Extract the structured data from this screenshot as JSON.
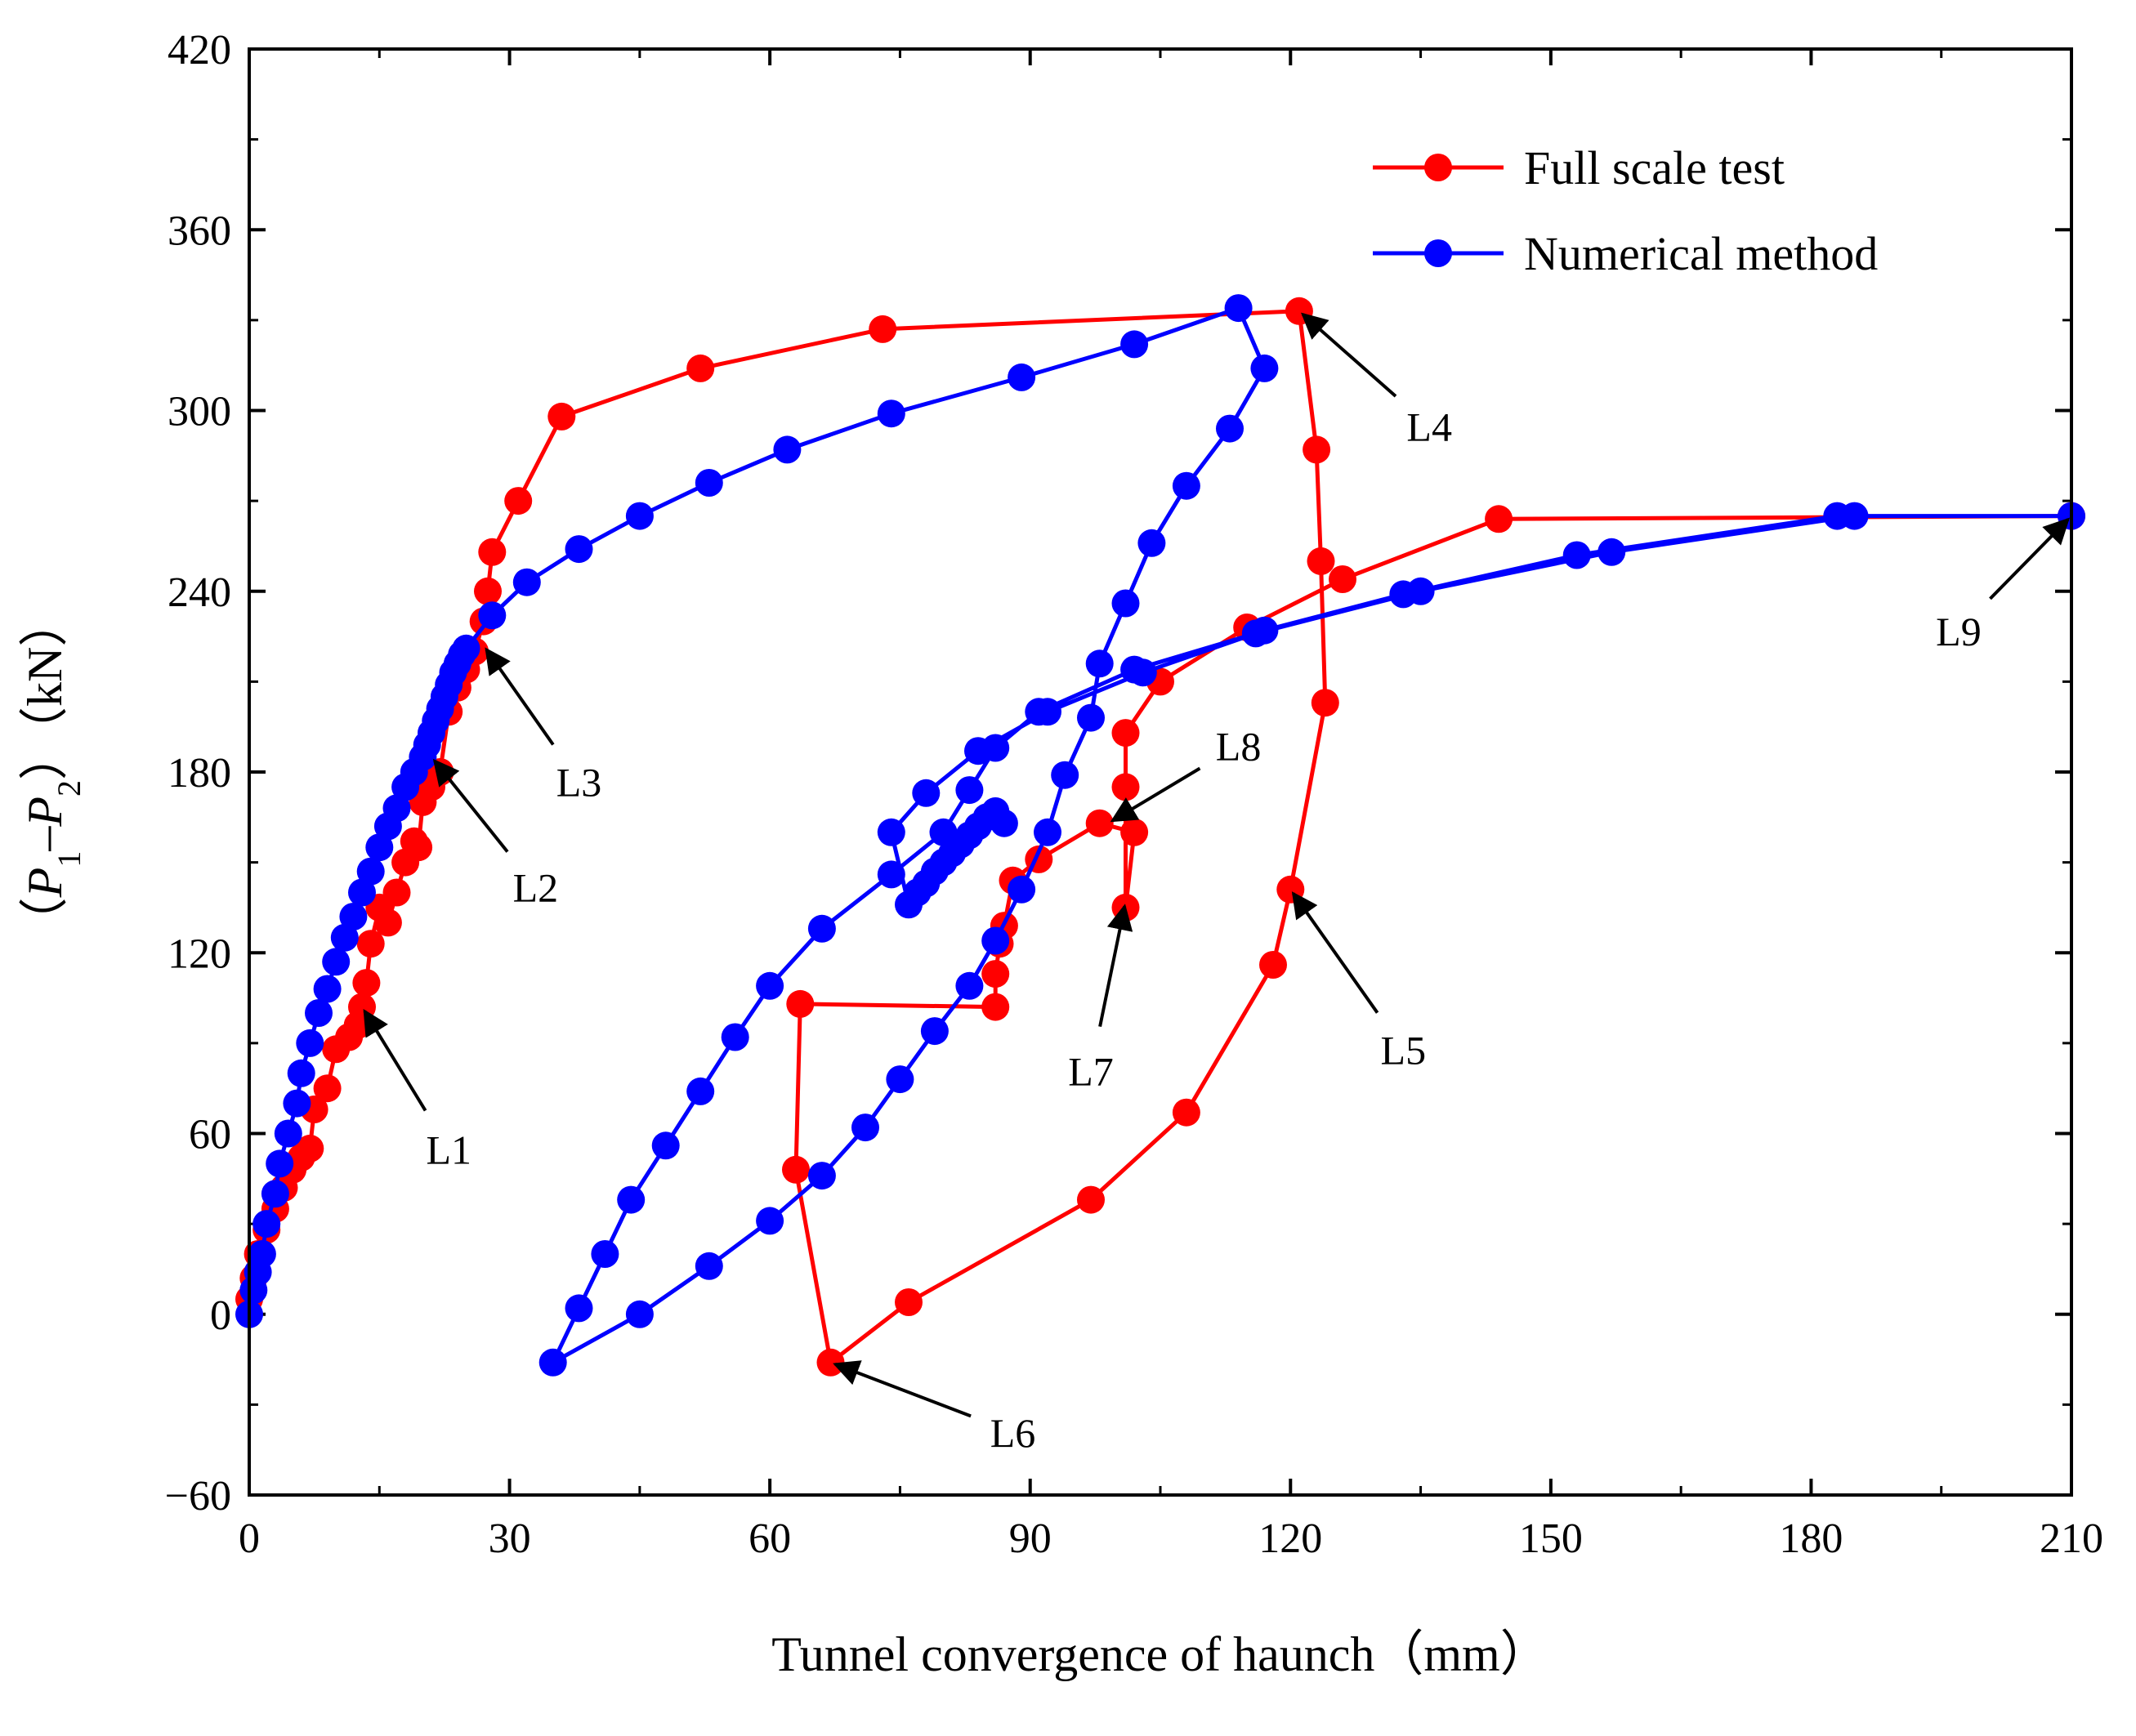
{
  "chart_data": {
    "type": "line",
    "xlabel": "Tunnel convergence of haunch（mm）",
    "ylabel_parts": [
      "（",
      "P",
      "1",
      "–",
      "P",
      "2",
      "）（kN）"
    ],
    "xlim": [
      0,
      210
    ],
    "ylim": [
      -60,
      420
    ],
    "xticks": [
      0,
      30,
      60,
      90,
      120,
      150,
      180,
      210
    ],
    "yticks": [
      -60,
      0,
      60,
      120,
      180,
      240,
      300,
      360,
      420
    ],
    "legend_position": "top-right",
    "series": [
      {
        "name": "Full scale test",
        "color": "#ff0000",
        "points": [
          [
            0,
            5
          ],
          [
            0.5,
            12
          ],
          [
            1,
            20
          ],
          [
            2,
            28
          ],
          [
            3,
            35
          ],
          [
            4,
            42
          ],
          [
            5,
            48
          ],
          [
            6,
            52
          ],
          [
            7,
            55
          ],
          [
            7.5,
            68
          ],
          [
            9,
            75
          ],
          [
            10,
            88
          ],
          [
            11.5,
            92
          ],
          [
            12.5,
            96
          ],
          [
            13,
            102
          ],
          [
            13.5,
            110
          ],
          [
            14,
            123
          ],
          [
            15,
            135
          ],
          [
            16,
            130
          ],
          [
            17,
            140
          ],
          [
            18,
            150
          ],
          [
            19,
            157
          ],
          [
            19.5,
            155
          ],
          [
            20,
            170
          ],
          [
            21,
            175
          ],
          [
            22,
            180
          ],
          [
            23,
            200
          ],
          [
            24,
            208
          ],
          [
            25,
            214
          ],
          [
            26,
            220
          ],
          [
            27,
            230
          ],
          [
            27.5,
            240
          ],
          [
            28,
            253
          ],
          [
            31,
            270
          ],
          [
            36,
            298
          ],
          [
            52,
            314
          ],
          [
            73,
            327
          ],
          [
            121,
            333
          ],
          [
            123,
            287
          ],
          [
            123.5,
            250
          ],
          [
            124,
            203
          ],
          [
            120,
            141
          ],
          [
            118,
            116
          ],
          [
            108,
            67
          ],
          [
            97,
            38
          ],
          [
            76,
            4
          ],
          [
            67,
            -16
          ],
          [
            63,
            48
          ],
          [
            63.5,
            103
          ],
          [
            86,
            102
          ],
          [
            86,
            113
          ],
          [
            86.5,
            123
          ],
          [
            87,
            129
          ],
          [
            88,
            144
          ],
          [
            91,
            151
          ],
          [
            98,
            163
          ],
          [
            102,
            160
          ],
          [
            101,
            135
          ],
          [
            101,
            175
          ],
          [
            101,
            193
          ],
          [
            105,
            210
          ],
          [
            115,
            228
          ],
          [
            126,
            244
          ],
          [
            144,
            264
          ],
          [
            210,
            265
          ]
        ]
      },
      {
        "name": "Numerical method",
        "color": "#0000ff",
        "points": [
          [
            0,
            0
          ],
          [
            0.5,
            8
          ],
          [
            1,
            14
          ],
          [
            1.5,
            20
          ],
          [
            2,
            30
          ],
          [
            3,
            40
          ],
          [
            3.5,
            50
          ],
          [
            4.5,
            60
          ],
          [
            5.5,
            70
          ],
          [
            6,
            80
          ],
          [
            7,
            90
          ],
          [
            8,
            100
          ],
          [
            9,
            108
          ],
          [
            10,
            117
          ],
          [
            11,
            125
          ],
          [
            12,
            132
          ],
          [
            13,
            140
          ],
          [
            14,
            147
          ],
          [
            15,
            155
          ],
          [
            16,
            162
          ],
          [
            17,
            168
          ],
          [
            18,
            175
          ],
          [
            19,
            180
          ],
          [
            20,
            185
          ],
          [
            20.5,
            189
          ],
          [
            21,
            193
          ],
          [
            21.5,
            197
          ],
          [
            22,
            201
          ],
          [
            22.5,
            205
          ],
          [
            23,
            209
          ],
          [
            23.5,
            213
          ],
          [
            24,
            216
          ],
          [
            24.5,
            219
          ],
          [
            25,
            221
          ],
          [
            28,
            232
          ],
          [
            32,
            243
          ],
          [
            38,
            254
          ],
          [
            45,
            265
          ],
          [
            53,
            276
          ],
          [
            62,
            287
          ],
          [
            74,
            299
          ],
          [
            89,
            311
          ],
          [
            102,
            322
          ],
          [
            114,
            334
          ],
          [
            117,
            314
          ],
          [
            113,
            294
          ],
          [
            108,
            275
          ],
          [
            104,
            256
          ],
          [
            101,
            236
          ],
          [
            98,
            216
          ],
          [
            97,
            198
          ],
          [
            94,
            179
          ],
          [
            92,
            160
          ],
          [
            89,
            141
          ],
          [
            86,
            124
          ],
          [
            83,
            109
          ],
          [
            79,
            94
          ],
          [
            75,
            78
          ],
          [
            71,
            62
          ],
          [
            66,
            46
          ],
          [
            60,
            31
          ],
          [
            53,
            16
          ],
          [
            45,
            0
          ],
          [
            35,
            -16
          ],
          [
            38,
            2
          ],
          [
            41,
            20
          ],
          [
            44,
            38
          ],
          [
            48,
            56
          ],
          [
            52,
            74
          ],
          [
            56,
            92
          ],
          [
            60,
            109
          ],
          [
            66,
            128
          ],
          [
            74,
            146
          ],
          [
            80,
            160
          ],
          [
            83,
            174
          ],
          [
            86,
            188
          ],
          [
            91,
            200
          ],
          [
            102,
            214
          ],
          [
            116,
            226
          ],
          [
            135,
            240
          ],
          [
            157,
            253
          ],
          [
            185,
            265
          ],
          [
            210,
            265
          ],
          [
            183,
            265
          ],
          [
            153,
            252
          ],
          [
            133,
            239
          ],
          [
            117,
            227
          ],
          [
            103,
            213
          ],
          [
            92,
            200
          ],
          [
            84,
            187
          ],
          [
            78,
            173
          ],
          [
            74,
            160
          ],
          [
            76,
            136
          ],
          [
            77,
            140
          ],
          [
            78,
            143
          ],
          [
            79,
            147
          ],
          [
            80,
            150
          ],
          [
            81,
            153
          ],
          [
            82,
            156
          ],
          [
            83,
            159
          ],
          [
            84,
            162
          ],
          [
            85,
            165
          ],
          [
            86,
            167
          ],
          [
            87,
            163
          ]
        ]
      }
    ],
    "annotations": [
      {
        "label": "L1",
        "target": [
          13,
          102
        ],
        "text_at": [
          23,
          50
        ]
      },
      {
        "label": "L2",
        "target": [
          21,
          185
        ],
        "text_at": [
          33,
          137
        ]
      },
      {
        "label": "L3",
        "target": [
          27,
          222
        ],
        "text_at": [
          38,
          172
        ]
      },
      {
        "label": "L4",
        "target": [
          121,
          333
        ],
        "text_at": [
          136,
          290
        ]
      },
      {
        "label": "L5",
        "target": [
          120,
          141
        ],
        "text_at": [
          133,
          83
        ]
      },
      {
        "label": "L6",
        "target": [
          67,
          -16
        ],
        "text_at": [
          88,
          -44
        ]
      },
      {
        "label": "L7",
        "target": [
          101,
          137
        ],
        "text_at": [
          97,
          76
        ]
      },
      {
        "label": "L8",
        "target": [
          99,
          163
        ],
        "text_at": [
          114,
          184
        ]
      },
      {
        "label": "L9",
        "target": [
          210,
          265
        ],
        "text_at": [
          197,
          222
        ]
      }
    ]
  }
}
